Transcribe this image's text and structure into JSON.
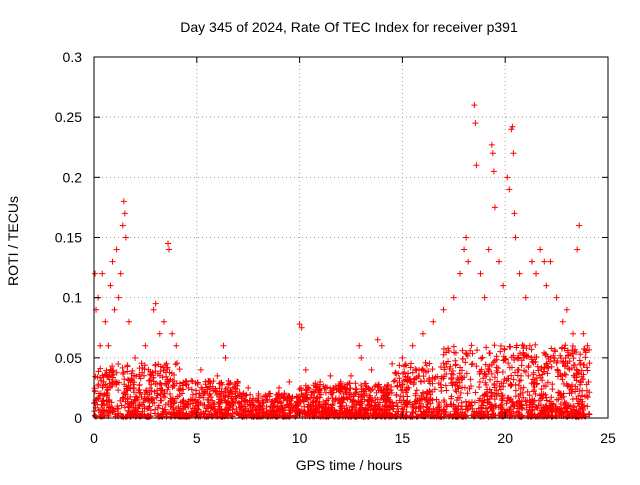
{
  "chart_data": {
    "type": "scatter",
    "title": "Day 345 of 2024, Rate Of TEC Index for receiver p391",
    "xlabel": "GPS time / hours",
    "ylabel": "ROTI / TECUs",
    "xlim": [
      0,
      25
    ],
    "ylim": [
      0,
      0.3
    ],
    "x_ticks": [
      "0",
      "5",
      "10",
      "15",
      "20",
      "25"
    ],
    "y_ticks": [
      "0",
      "0.05",
      "0.1",
      "0.15",
      "0.2",
      "0.25",
      "0.3"
    ],
    "grid": true,
    "marker": "+",
    "series": [
      {
        "color": "#ff0000",
        "points": [
          [
            0.05,
            0.12
          ],
          [
            0.1,
            0.09
          ],
          [
            0.2,
            0.1
          ],
          [
            0.3,
            0.06
          ],
          [
            0.4,
            0.12
          ],
          [
            0.55,
            0.08
          ],
          [
            0.7,
            0.06
          ],
          [
            0.8,
            0.11
          ],
          [
            0.9,
            0.13
          ],
          [
            1.0,
            0.09
          ],
          [
            1.1,
            0.14
          ],
          [
            1.2,
            0.1
          ],
          [
            1.3,
            0.12
          ],
          [
            1.4,
            0.16
          ],
          [
            1.45,
            0.18
          ],
          [
            1.5,
            0.17
          ],
          [
            1.55,
            0.15
          ],
          [
            1.7,
            0.08
          ],
          [
            2.0,
            0.05
          ],
          [
            2.5,
            0.06
          ],
          [
            2.9,
            0.09
          ],
          [
            3.0,
            0.095
          ],
          [
            3.2,
            0.07
          ],
          [
            3.4,
            0.08
          ],
          [
            3.6,
            0.145
          ],
          [
            3.65,
            0.14
          ],
          [
            3.8,
            0.07
          ],
          [
            4.0,
            0.06
          ],
          [
            4.5,
            0.03
          ],
          [
            5.2,
            0.04
          ],
          [
            5.6,
            0.03
          ],
          [
            6.0,
            0.035
          ],
          [
            6.3,
            0.06
          ],
          [
            6.4,
            0.05
          ],
          [
            7.0,
            0.03
          ],
          [
            7.5,
            0.025
          ],
          [
            8.0,
            0.02
          ],
          [
            8.5,
            0.02
          ],
          [
            9.0,
            0.025
          ],
          [
            9.5,
            0.03
          ],
          [
            10.0,
            0.078
          ],
          [
            10.1,
            0.075
          ],
          [
            10.3,
            0.04
          ],
          [
            11.0,
            0.03
          ],
          [
            11.5,
            0.035
          ],
          [
            12.0,
            0.03
          ],
          [
            12.5,
            0.035
          ],
          [
            12.9,
            0.06
          ],
          [
            13.0,
            0.05
          ],
          [
            13.5,
            0.04
          ],
          [
            13.8,
            0.065
          ],
          [
            14.0,
            0.06
          ],
          [
            14.5,
            0.045
          ],
          [
            15.0,
            0.05
          ],
          [
            15.5,
            0.06
          ],
          [
            16.0,
            0.07
          ],
          [
            16.5,
            0.08
          ],
          [
            17.0,
            0.09
          ],
          [
            17.5,
            0.1
          ],
          [
            17.8,
            0.12
          ],
          [
            18.0,
            0.14
          ],
          [
            18.1,
            0.15
          ],
          [
            18.2,
            0.13
          ],
          [
            18.5,
            0.26
          ],
          [
            18.55,
            0.245
          ],
          [
            18.6,
            0.21
          ],
          [
            18.8,
            0.12
          ],
          [
            19.0,
            0.1
          ],
          [
            19.2,
            0.14
          ],
          [
            19.35,
            0.227
          ],
          [
            19.4,
            0.22
          ],
          [
            19.45,
            0.205
          ],
          [
            19.5,
            0.175
          ],
          [
            19.7,
            0.13
          ],
          [
            19.9,
            0.11
          ],
          [
            20.1,
            0.2
          ],
          [
            20.2,
            0.19
          ],
          [
            20.3,
            0.24
          ],
          [
            20.35,
            0.242
          ],
          [
            20.4,
            0.22
          ],
          [
            20.45,
            0.17
          ],
          [
            20.5,
            0.15
          ],
          [
            20.7,
            0.12
          ],
          [
            21.0,
            0.1
          ],
          [
            21.3,
            0.13
          ],
          [
            21.5,
            0.12
          ],
          [
            21.7,
            0.14
          ],
          [
            21.9,
            0.13
          ],
          [
            22.0,
            0.11
          ],
          [
            22.2,
            0.13
          ],
          [
            22.5,
            0.1
          ],
          [
            22.8,
            0.08
          ],
          [
            23.0,
            0.09
          ],
          [
            23.3,
            0.07
          ],
          [
            23.5,
            0.14
          ],
          [
            23.6,
            0.16
          ],
          [
            23.8,
            0.07
          ],
          [
            24.0,
            0.06
          ]
        ]
      }
    ]
  }
}
